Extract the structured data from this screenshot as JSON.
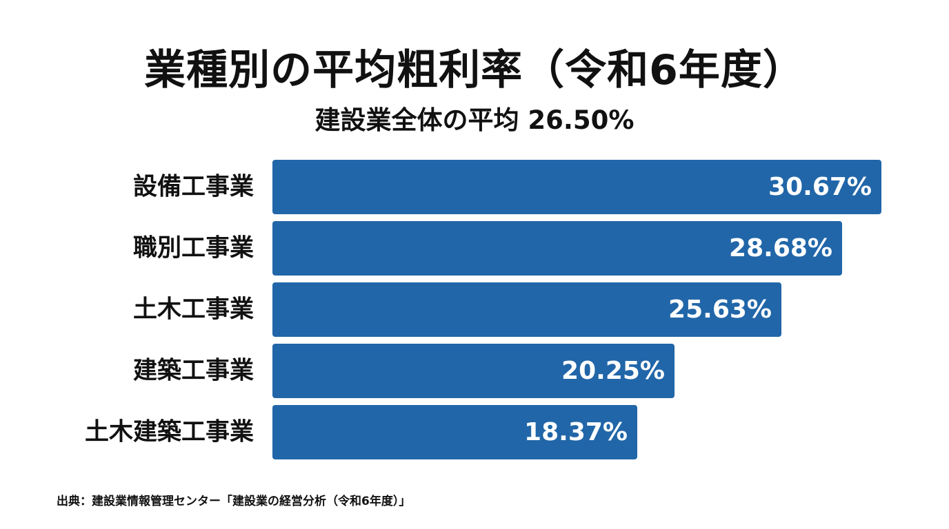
{
  "chart_data": {
    "type": "bar",
    "orientation": "horizontal",
    "title": "業種別の平均粗利率（令和6年度）",
    "subtitle": "建設業全体の平均 26.50%",
    "categories": [
      "設備工事業",
      "職別工事業",
      "土木工事業",
      "建築工事業",
      "土木建築工事業"
    ],
    "values": [
      30.67,
      28.68,
      25.63,
      20.25,
      18.37
    ],
    "value_labels": [
      "30.67%",
      "28.68%",
      "25.63%",
      "20.25%",
      "18.37%"
    ],
    "unit": "%",
    "xlabel": "",
    "ylabel": "",
    "xlim": [
      0,
      30.67
    ],
    "grid": false,
    "legend": "none",
    "colors": {
      "bar": "#2166a8",
      "value_text": "#ffffff",
      "text": "#111111",
      "background": "#ffffff"
    }
  },
  "source": "出典：建設業情報管理センター「建設業の経営分析（令和6年度）」"
}
